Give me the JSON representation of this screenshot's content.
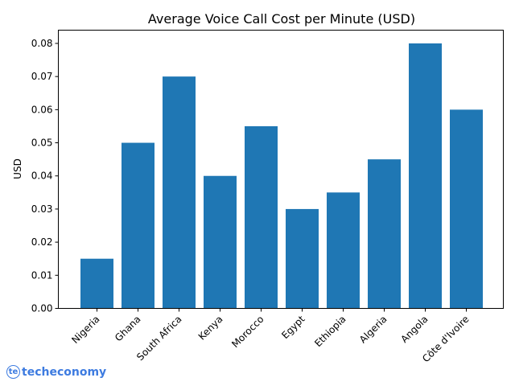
{
  "chart_data": {
    "type": "bar",
    "title": "Average Voice Call Cost per Minute (USD)",
    "xlabel": "",
    "ylabel": "USD",
    "categories": [
      "Nigeria",
      "Ghana",
      "South Africa",
      "Kenya",
      "Morocco",
      "Egypt",
      "Ethiopia",
      "Algeria",
      "Angola",
      "Côte d'Ivoire"
    ],
    "values": [
      0.015,
      0.05,
      0.07,
      0.04,
      0.055,
      0.03,
      0.035,
      0.045,
      0.08,
      0.06
    ],
    "ylim": [
      0,
      0.084
    ],
    "yticks": [
      "0.00",
      "0.01",
      "0.02",
      "0.03",
      "0.04",
      "0.05",
      "0.06",
      "0.07",
      "0.08"
    ],
    "bar_color": "#1f77b4",
    "grid": false
  },
  "watermark": {
    "text": "techeconomy",
    "logo": "te",
    "color": "#3d7be0"
  }
}
